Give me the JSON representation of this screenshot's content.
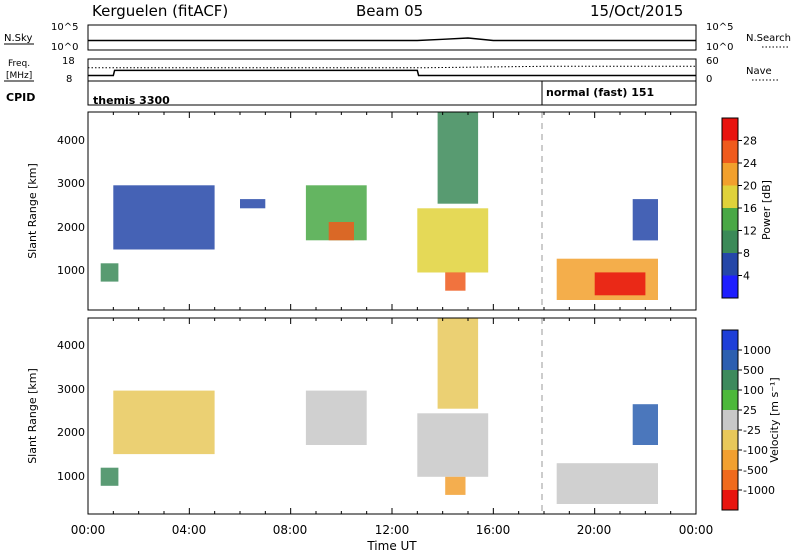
{
  "header": {
    "station": "Kerguelen (fitACF)",
    "beam": "Beam 05",
    "date": "15/Oct/2015"
  },
  "top_strip": {
    "left_label": "N.Sky",
    "right_label": "N.Search",
    "left_ticks": [
      "10^5",
      "10^0"
    ],
    "right_ticks": [
      "10^5",
      "10^0"
    ]
  },
  "freq_strip": {
    "left_label_1": "Freq.",
    "left_label_2": "[MHz]",
    "right_label": "Nave",
    "left_ticks": [
      "18",
      "8"
    ],
    "right_ticks": [
      "60",
      "0"
    ]
  },
  "cpid_strip": {
    "label": "CPID",
    "segments": [
      {
        "start_hour": 0,
        "text": "themis 3300"
      },
      {
        "start_hour": 18.0,
        "text": "normal (fast) 151"
      }
    ]
  },
  "x_axis": {
    "label": "Time UT",
    "ticks": [
      "00:00",
      "04:00",
      "08:00",
      "12:00",
      "16:00",
      "20:00",
      "00:00"
    ]
  },
  "power_panel": {
    "ylabel": "Slant Range [km]",
    "yticks": [
      "1000",
      "2000",
      "3000",
      "4000"
    ],
    "colorbar_label": "Power [dB]",
    "colorbar_ticks": [
      "4",
      "8",
      "12",
      "16",
      "20",
      "24",
      "28"
    ],
    "colorbar_colors": [
      "#1f1fff",
      "#2547a8",
      "#3b8a58",
      "#49a845",
      "#e0d23a",
      "#f2a02c",
      "#ef5a1c",
      "#e8120e"
    ]
  },
  "velocity_panel": {
    "ylabel": "Slant Range [km]",
    "yticks": [
      "1000",
      "2000",
      "3000",
      "4000"
    ],
    "colorbar_label": "Velocity [m s⁻¹]",
    "colorbar_ticks": [
      "1000",
      "500",
      "100",
      "25",
      "-25",
      "-100",
      "-500",
      "-1000"
    ],
    "colorbar_colors": [
      "#1f3fd8",
      "#2c5fb0",
      "#3d8a5c",
      "#4cb83a",
      "#c8c8c8",
      "#e8c85a",
      "#f2a030",
      "#ef6a1c",
      "#e8140e"
    ]
  },
  "chart_data": [
    {
      "type": "line",
      "title": "N.Sky / N.Search",
      "x_hours": [
        0,
        1,
        2,
        4,
        6,
        8,
        10,
        12,
        13,
        14,
        15,
        16,
        18,
        20,
        22,
        24
      ],
      "series": [
        {
          "name": "N.Sky",
          "values": [
            5,
            5,
            5,
            5,
            5,
            5,
            5,
            5,
            5,
            5.5,
            6,
            5,
            5,
            5,
            5,
            5
          ]
        }
      ],
      "ylim": [
        0,
        10
      ]
    },
    {
      "type": "line",
      "title": "Freq / Nave",
      "x_hours": [
        0,
        1,
        1.05,
        13,
        13.05,
        18,
        24
      ],
      "series": [
        {
          "name": "Freq.",
          "values": [
            10.5,
            10.5,
            12.8,
            12.8,
            10.5,
            10.5,
            10.5
          ]
        },
        {
          "name": "Nave",
          "values": [
            36,
            36,
            36,
            36,
            36,
            40,
            40
          ]
        }
      ],
      "ylim_freq": [
        8,
        18
      ],
      "ylim_nave": [
        0,
        60
      ]
    },
    {
      "type": "heatmap",
      "title": "Power",
      "xlim_hours": [
        0,
        24
      ],
      "ylim_km": [
        180,
        4500
      ],
      "regions": [
        {
          "t0": 0.5,
          "t1": 1.2,
          "r0": 800,
          "r1": 1200,
          "value": 10
        },
        {
          "t0": 1.0,
          "t1": 5.0,
          "r0": 1500,
          "r1": 2900,
          "value": 6
        },
        {
          "t0": 6.0,
          "t1": 7.0,
          "r0": 2400,
          "r1": 2600,
          "value": 6
        },
        {
          "t0": 8.6,
          "t1": 11.0,
          "r0": 1700,
          "r1": 2900,
          "value": 14
        },
        {
          "t0": 9.5,
          "t1": 10.5,
          "r0": 1700,
          "r1": 2100,
          "value": 24
        },
        {
          "t0": 13.0,
          "t1": 15.8,
          "r0": 1000,
          "r1": 2400,
          "value": 16
        },
        {
          "t0": 14.1,
          "t1": 14.9,
          "r0": 600,
          "r1": 1000,
          "value": 26
        },
        {
          "t0": 13.8,
          "t1": 15.4,
          "r0": 2500,
          "r1": 4500,
          "value": 8
        },
        {
          "t0": 18.5,
          "t1": 22.5,
          "r0": 400,
          "r1": 1300,
          "value": 20
        },
        {
          "t0": 20.0,
          "t1": 22.0,
          "r0": 500,
          "r1": 1000,
          "value": 28
        },
        {
          "t0": 21.5,
          "t1": 22.5,
          "r0": 1700,
          "r1": 2600,
          "value": 6
        }
      ]
    },
    {
      "type": "heatmap",
      "title": "Velocity",
      "xlim_hours": [
        0,
        24
      ],
      "ylim_km": [
        180,
        4500
      ],
      "regions": [
        {
          "t0": 0.5,
          "t1": 1.2,
          "r0": 800,
          "r1": 1200,
          "value": 100
        },
        {
          "t0": 1.0,
          "t1": 5.0,
          "r0": 1500,
          "r1": 2900,
          "value": -100
        },
        {
          "t0": 8.6,
          "t1": 11.0,
          "r0": 1700,
          "r1": 2900,
          "value": 0
        },
        {
          "t0": 13.0,
          "t1": 15.8,
          "r0": 1000,
          "r1": 2400,
          "value": 0
        },
        {
          "t0": 14.1,
          "t1": 14.9,
          "r0": 600,
          "r1": 1000,
          "value": -500
        },
        {
          "t0": 13.8,
          "t1": 15.4,
          "r0": 2500,
          "r1": 4500,
          "value": -100
        },
        {
          "t0": 18.5,
          "t1": 22.5,
          "r0": 400,
          "r1": 1300,
          "value": 0
        },
        {
          "t0": 21.5,
          "t1": 22.5,
          "r0": 1700,
          "r1": 2600,
          "value": 500
        }
      ]
    }
  ]
}
